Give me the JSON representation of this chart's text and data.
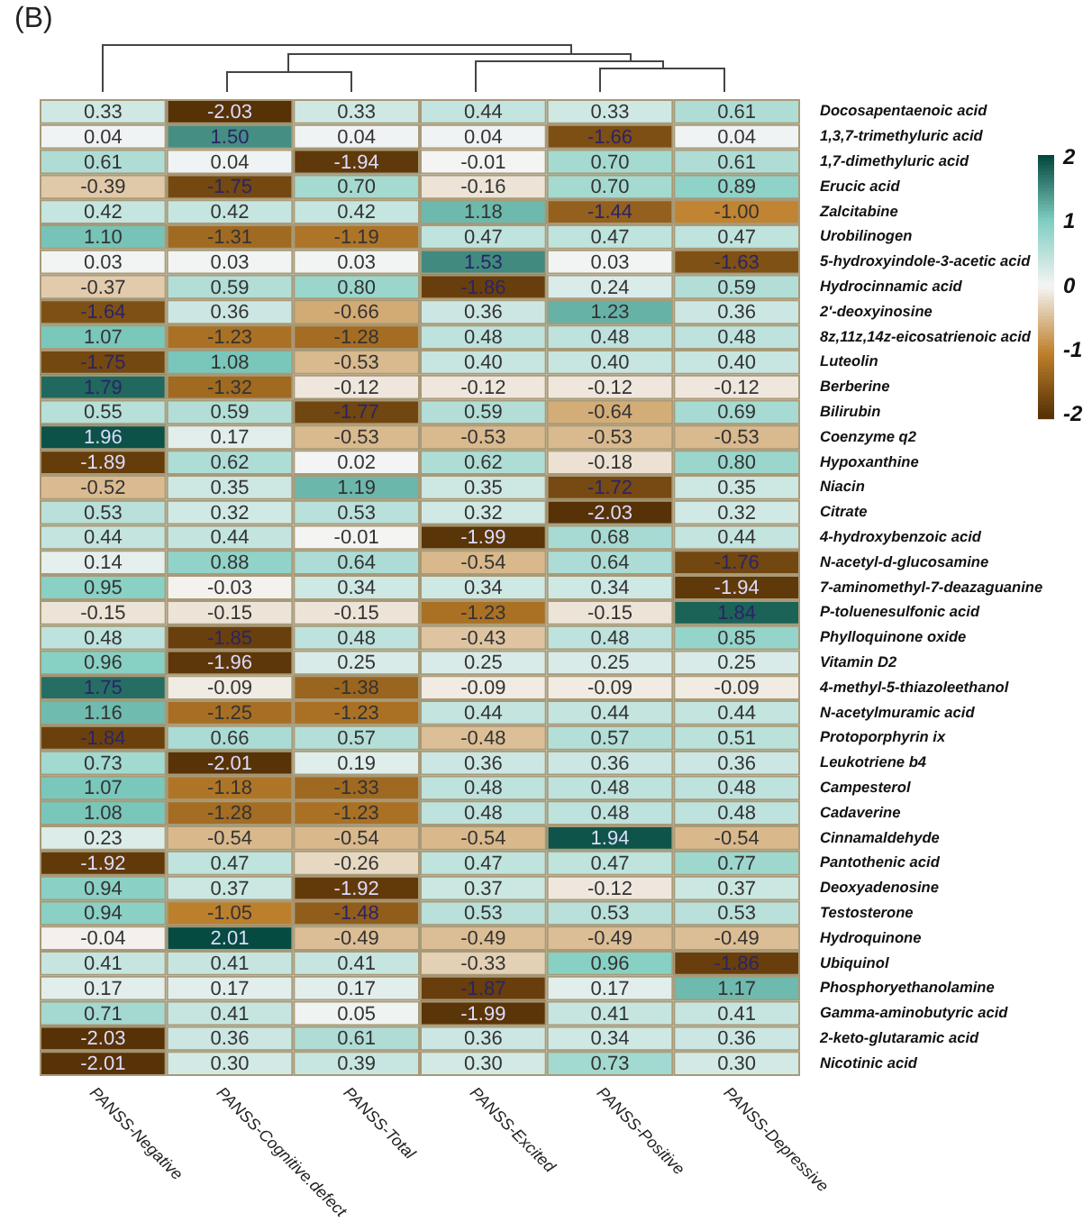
{
  "chart_data": {
    "type": "heatmap",
    "title": "(B)",
    "categories": [
      "PANSS-Negative",
      "PANSS-Cognitive.defect",
      "PANSS-Total",
      "PANSS-Excited",
      "PANSS-Positive",
      "PANSS-Depressive"
    ],
    "y_categories": [
      "Docosapentaenoic acid",
      "1,3,7-trimethyluric acid",
      "1,7-dimethyluric acid",
      "Erucic acid",
      "Zalcitabine",
      "Urobilinogen",
      "5-hydroxyindole-3-acetic acid",
      "Hydrocinnamic acid",
      "2'-deoxyinosine",
      "8z,11z,14z-eicosatrienoic acid",
      "Luteolin",
      "Berberine",
      "Bilirubin",
      "Coenzyme q2",
      "Hypoxanthine",
      "Niacin",
      "Citrate",
      "4-hydroxybenzoic acid",
      "N-acetyl-d-glucosamine",
      "7-aminomethyl-7-deazaguanine",
      "P-toluenesulfonic acid",
      "Phylloquinone oxide",
      "Vitamin D2",
      "4-methyl-5-thiazoleethanol",
      "N-acetylmuramic acid",
      "Protoporphyrin ix",
      "Leukotriene b4",
      "Campesterol",
      "Cadaverine",
      "Cinnamaldehyde",
      "Pantothenic acid",
      "Deoxyadenosine",
      "Testosterone",
      "Hydroquinone",
      "Ubiquinol",
      "Phosphoryethanolamine",
      "Gamma-aminobutyric acid",
      "2-keto-glutaramic acid",
      "Nicotinic acid"
    ],
    "cells": [
      [
        0.33,
        -2.03,
        0.33,
        0.44,
        0.33,
        0.61
      ],
      [
        0.04,
        1.5,
        0.04,
        0.04,
        -1.66,
        0.04
      ],
      [
        0.61,
        0.04,
        -1.94,
        -0.01,
        0.7,
        0.61
      ],
      [
        -0.39,
        -1.75,
        0.7,
        -0.16,
        0.7,
        0.89
      ],
      [
        0.42,
        0.42,
        0.42,
        1.18,
        -1.44,
        -1.0
      ],
      [
        1.1,
        -1.31,
        -1.19,
        0.47,
        0.47,
        0.47
      ],
      [
        0.03,
        0.03,
        0.03,
        1.53,
        0.03,
        -1.63
      ],
      [
        -0.37,
        0.59,
        0.8,
        -1.86,
        0.24,
        0.59
      ],
      [
        -1.64,
        0.36,
        -0.66,
        0.36,
        1.23,
        0.36
      ],
      [
        1.07,
        -1.23,
        -1.28,
        0.48,
        0.48,
        0.48
      ],
      [
        -1.75,
        1.08,
        -0.53,
        0.4,
        0.4,
        0.4
      ],
      [
        1.79,
        -1.32,
        -0.12,
        -0.12,
        -0.12,
        -0.12
      ],
      [
        0.55,
        0.59,
        -1.77,
        0.59,
        -0.64,
        0.69
      ],
      [
        1.96,
        0.17,
        -0.53,
        -0.53,
        -0.53,
        -0.53
      ],
      [
        -1.89,
        0.62,
        0.02,
        0.62,
        -0.18,
        0.8
      ],
      [
        -0.52,
        0.35,
        1.19,
        0.35,
        -1.72,
        0.35
      ],
      [
        0.53,
        0.32,
        0.53,
        0.32,
        -2.03,
        0.32
      ],
      [
        0.44,
        0.44,
        -0.01,
        -1.99,
        0.68,
        0.44
      ],
      [
        0.14,
        0.88,
        0.64,
        -0.54,
        0.64,
        -1.76
      ],
      [
        0.95,
        -0.03,
        0.34,
        0.34,
        0.34,
        -1.94
      ],
      [
        -0.15,
        -0.15,
        -0.15,
        -1.23,
        -0.15,
        1.84
      ],
      [
        0.48,
        -1.85,
        0.48,
        -0.43,
        0.48,
        0.85
      ],
      [
        0.96,
        -1.96,
        0.25,
        0.25,
        0.25,
        0.25
      ],
      [
        1.75,
        -0.09,
        -1.38,
        -0.09,
        -0.09,
        -0.09
      ],
      [
        1.16,
        -1.25,
        -1.23,
        0.44,
        0.44,
        0.44
      ],
      [
        -1.84,
        0.66,
        0.57,
        -0.48,
        0.57,
        0.51
      ],
      [
        0.73,
        -2.01,
        0.19,
        0.36,
        0.36,
        0.36
      ],
      [
        1.07,
        -1.18,
        -1.33,
        0.48,
        0.48,
        0.48
      ],
      [
        1.08,
        -1.28,
        -1.23,
        0.48,
        0.48,
        0.48
      ],
      [
        0.23,
        -0.54,
        -0.54,
        -0.54,
        1.94,
        -0.54
      ],
      [
        -1.92,
        0.47,
        -0.26,
        0.47,
        0.47,
        0.77
      ],
      [
        0.94,
        0.37,
        -1.92,
        0.37,
        -0.12,
        0.37
      ],
      [
        0.94,
        -1.05,
        -1.48,
        0.53,
        0.53,
        0.53
      ],
      [
        -0.04,
        2.01,
        -0.49,
        -0.49,
        -0.49,
        -0.49
      ],
      [
        0.41,
        0.41,
        0.41,
        -0.33,
        0.96,
        -1.86
      ],
      [
        0.17,
        0.17,
        0.17,
        -1.87,
        0.17,
        1.17
      ],
      [
        0.71,
        0.41,
        0.05,
        -1.99,
        0.41,
        0.41
      ],
      [
        -2.03,
        0.36,
        0.61,
        0.36,
        0.34,
        0.36
      ],
      [
        -2.01,
        0.3,
        0.39,
        0.3,
        0.73,
        0.3
      ]
    ],
    "cell_labels": [
      [
        "0.33",
        "-2.03",
        "0.33",
        "0.44",
        "0.33",
        "0.61"
      ],
      [
        "0.04",
        "1.50",
        "0.04",
        "0.04",
        "-1.66",
        "0.04"
      ],
      [
        "0.61",
        "0.04",
        "-1.94",
        "-0.01",
        "0.70",
        "0.61"
      ],
      [
        "-0.39",
        "-1.75",
        "0.70",
        "-0.16",
        "0.70",
        "0.89"
      ],
      [
        "0.42",
        "0.42",
        "0.42",
        "1.18",
        "-1.44",
        "-1.00"
      ],
      [
        "1.10",
        "-1.31",
        "-1.19",
        "0.47",
        "0.47",
        "0.47"
      ],
      [
        "0.03",
        "0.03",
        "0.03",
        "1.53",
        "0.03",
        "-1.63"
      ],
      [
        "-0.37",
        "0.59",
        "0.80",
        "-1.86",
        "0.24",
        "0.59"
      ],
      [
        "-1.64",
        "0.36",
        "-0.66",
        "0.36",
        "1.23",
        "0.36"
      ],
      [
        "1.07",
        "-1.23",
        "-1.28",
        "0.48",
        "0.48",
        "0.48"
      ],
      [
        "-1.75",
        "1.08",
        "-0.53",
        "0.40",
        "0.40",
        "0.40"
      ],
      [
        "1.79",
        "-1.32",
        "-0.12",
        "-0.12",
        "-0.12",
        "-0.12"
      ],
      [
        "0.55",
        "0.59",
        "-1.77",
        "0.59",
        "-0.64",
        "0.69"
      ],
      [
        "1.96",
        "0.17",
        "-0.53",
        "-0.53",
        "-0.53",
        "-0.53"
      ],
      [
        "-1.89",
        "0.62",
        "0.02",
        "0.62",
        "-0.18",
        "0.80"
      ],
      [
        "-0.52",
        "0.35",
        "1.19",
        "0.35",
        "-1.72",
        "0.35"
      ],
      [
        "0.53",
        "0.32",
        "0.53",
        "0.32",
        "-2.03",
        "0.32"
      ],
      [
        "0.44",
        "0.44",
        "-0.01",
        "-1.99",
        "0.68",
        "0.44"
      ],
      [
        "0.14",
        "0.88",
        "0.64",
        "-0.54",
        "0.64",
        "-1.76"
      ],
      [
        "0.95",
        "-0.03",
        "0.34",
        "0.34",
        "0.34",
        "-1.94"
      ],
      [
        "-0.15",
        "-0.15",
        "-0.15",
        "-1.23",
        "-0.15",
        "1.84"
      ],
      [
        "0.48",
        "-1.85",
        "0.48",
        "-0.43",
        "0.48",
        "0.85"
      ],
      [
        "0.96",
        "-1.96",
        "0.25",
        "0.25",
        "0.25",
        "0.25"
      ],
      [
        "1.75",
        "-0.09",
        "-1.38",
        "-0.09",
        "-0.09",
        "-0.09"
      ],
      [
        "1.16",
        "-1.25",
        "-1.23",
        "0.44",
        "0.44",
        "0.44"
      ],
      [
        "-1.84",
        "0.66",
        "0.57",
        "-0.48",
        "0.57",
        "0.51"
      ],
      [
        "0.73",
        "-2.01",
        "0.19",
        "0.36",
        "0.36",
        "0.36"
      ],
      [
        "1.07",
        "-1.18",
        "-1.33",
        "0.48",
        "0.48",
        "0.48"
      ],
      [
        "1.08",
        "-1.28",
        "-1.23",
        "0.48",
        "0.48",
        "0.48"
      ],
      [
        "0.23",
        "-0.54",
        "-0.54",
        "-0.54",
        "1.94",
        "-0.54"
      ],
      [
        "-1.92",
        "0.47",
        "-0.26",
        "0.47",
        "0.47",
        "0.77"
      ],
      [
        "0.94",
        "0.37",
        "-1.92",
        "0.37",
        "-0.12",
        "0.37"
      ],
      [
        "0.94",
        "-1.05",
        "-1.48",
        "0.53",
        "0.53",
        "0.53"
      ],
      [
        "-0.04",
        "2.01",
        "-0.49",
        "-0.49",
        "-0.49",
        "-0.49"
      ],
      [
        "0.41",
        "0.41",
        "0.41",
        "-0.33",
        "0.96",
        "-1.86"
      ],
      [
        "0.17",
        "0.17",
        "0.17",
        "-1.87",
        "0.17",
        "1.17"
      ],
      [
        "0.71",
        "0.41",
        "0.05",
        "-1.99",
        "0.41",
        "0.41"
      ],
      [
        "-2.03",
        "0.36",
        "0.61",
        "0.36",
        "0.34",
        "0.36"
      ],
      [
        "-2.01",
        "0.30",
        "0.39",
        "0.30",
        "0.73",
        "0.30"
      ]
    ],
    "clim": [
      -2.05,
      2.05
    ],
    "cticks": [
      -2,
      -1,
      0,
      1,
      2
    ],
    "data_labels": true
  }
}
